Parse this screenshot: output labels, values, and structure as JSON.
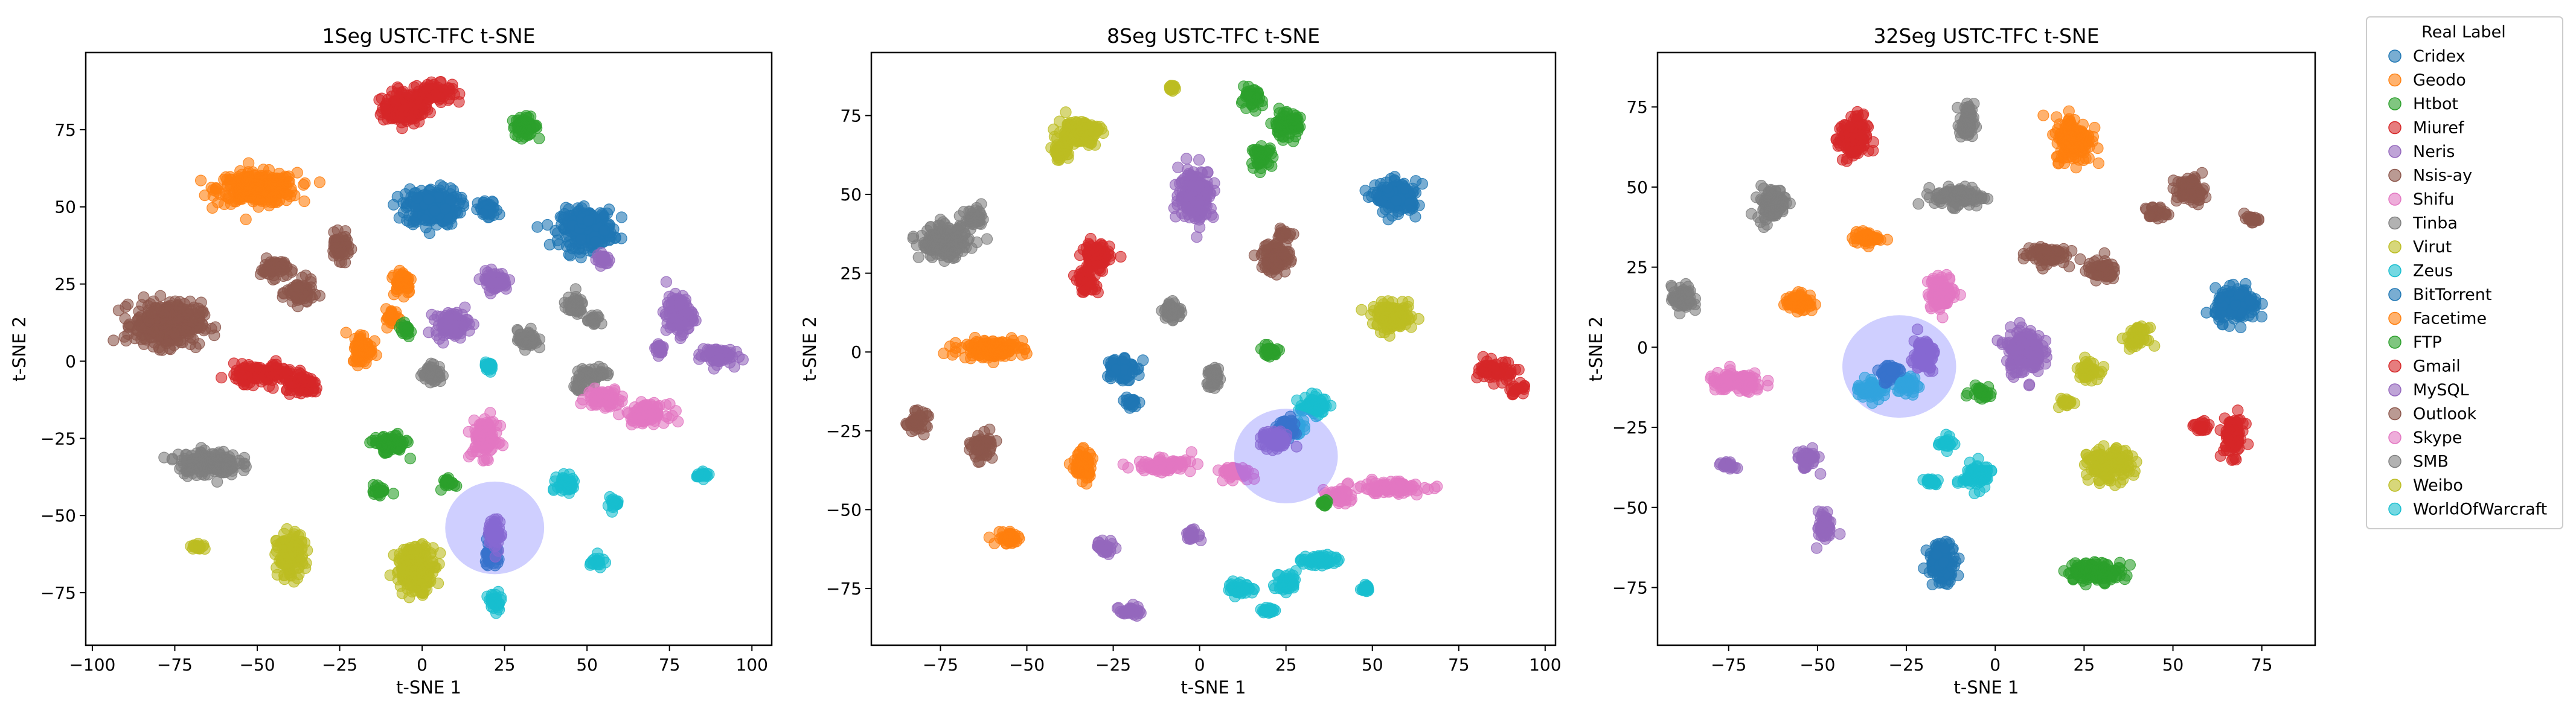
{
  "legend": {
    "title": "Real Label",
    "entries": [
      "Cridex",
      "Geodo",
      "Htbot",
      "Miuref",
      "Neris",
      "Nsis-ay",
      "Shifu",
      "Tinba",
      "Virut",
      "Zeus",
      "BitTorrent",
      "Facetime",
      "FTP",
      "Gmail",
      "MySQL",
      "Outlook",
      "Skype",
      "SMB",
      "Weibo",
      "WorldOfWarcraft"
    ],
    "colors": [
      "#1f77b4",
      "#ff7f0e",
      "#2ca02c",
      "#d62728",
      "#9467bd",
      "#8c564b",
      "#e377c2",
      "#7f7f7f",
      "#bcbd22",
      "#17becf",
      "#1f77b4",
      "#ff7f0e",
      "#2ca02c",
      "#d62728",
      "#9467bd",
      "#8c564b",
      "#e377c2",
      "#7f7f7f",
      "#bcbd22",
      "#17becf"
    ],
    "placement": "outside-right"
  },
  "chart_data": [
    {
      "type": "scatter",
      "title": "1Seg USTC-TFC t-SNE",
      "xlabel": "t-SNE 1",
      "ylabel": "t-SNE 2",
      "xlim": [
        -102,
        106
      ],
      "ylim": [
        -92,
        100
      ],
      "xticks": [
        -100,
        -75,
        -50,
        -25,
        0,
        25,
        50,
        75,
        100
      ],
      "yticks": [
        -75,
        -50,
        -25,
        0,
        25,
        50,
        75
      ],
      "highlight": {
        "x": 22,
        "y": -54,
        "rx": 15,
        "ry": 15
      },
      "clusters": [
        {
          "c": 3,
          "x": -5,
          "y": 82,
          "sx": 7,
          "sy": 5
        },
        {
          "c": 3,
          "x": 3,
          "y": 87,
          "sx": 6,
          "sy": 3
        },
        {
          "c": 12,
          "x": 31,
          "y": 76,
          "sx": 4,
          "sy": 3
        },
        {
          "c": 1,
          "x": -50,
          "y": 56,
          "sx": 12,
          "sy": 5
        },
        {
          "c": 0,
          "x": 3,
          "y": 50,
          "sx": 8,
          "sy": 6
        },
        {
          "c": 0,
          "x": 20,
          "y": 49,
          "sx": 3,
          "sy": 3
        },
        {
          "c": 0,
          "x": 50,
          "y": 43,
          "sx": 8,
          "sy": 6
        },
        {
          "c": 5,
          "x": -45,
          "y": 30,
          "sx": 4,
          "sy": 3
        },
        {
          "c": 5,
          "x": -25,
          "y": 37,
          "sx": 3,
          "sy": 4
        },
        {
          "c": 5,
          "x": -37,
          "y": 22,
          "sx": 4,
          "sy": 4
        },
        {
          "c": 5,
          "x": -77,
          "y": 12,
          "sx": 10,
          "sy": 7
        },
        {
          "c": 1,
          "x": -6,
          "y": 26,
          "sx": 3,
          "sy": 4
        },
        {
          "c": 1,
          "x": -9,
          "y": 14,
          "sx": 2,
          "sy": 3
        },
        {
          "c": 1,
          "x": -18,
          "y": 4,
          "sx": 3,
          "sy": 5
        },
        {
          "c": 14,
          "x": 22,
          "y": 26,
          "sx": 4,
          "sy": 3
        },
        {
          "c": 14,
          "x": 9,
          "y": 12,
          "sx": 5,
          "sy": 4
        },
        {
          "c": 14,
          "x": 78,
          "y": 15,
          "sx": 4,
          "sy": 6
        },
        {
          "c": 14,
          "x": 89,
          "y": 2,
          "sx": 5,
          "sy": 3
        },
        {
          "c": 14,
          "x": 72,
          "y": 4,
          "sx": 2,
          "sy": 2
        },
        {
          "c": 14,
          "x": 55,
          "y": 33,
          "sx": 2,
          "sy": 2
        },
        {
          "c": 7,
          "x": 46,
          "y": 18,
          "sx": 3,
          "sy": 3
        },
        {
          "c": 7,
          "x": 52,
          "y": 13,
          "sx": 2,
          "sy": 2
        },
        {
          "c": 7,
          "x": 32,
          "y": 7,
          "sx": 3,
          "sy": 3
        },
        {
          "c": 7,
          "x": 3,
          "y": -4,
          "sx": 3,
          "sy": 3
        },
        {
          "c": 7,
          "x": 52,
          "y": -4,
          "sx": 5,
          "sy": 2
        },
        {
          "c": 7,
          "x": 48,
          "y": -8,
          "sx": 2,
          "sy": 2
        },
        {
          "c": 7,
          "x": -65,
          "y": -33,
          "sx": 9,
          "sy": 4
        },
        {
          "c": 3,
          "x": -48,
          "y": -4,
          "sx": 9,
          "sy": 3
        },
        {
          "c": 3,
          "x": -36,
          "y": -8,
          "sx": 5,
          "sy": 3
        },
        {
          "c": 2,
          "x": -5,
          "y": 10,
          "sx": 2,
          "sy": 2
        },
        {
          "c": 9,
          "x": 20,
          "y": -2,
          "sx": 2,
          "sy": 2
        },
        {
          "c": 16,
          "x": 55,
          "y": -12,
          "sx": 5,
          "sy": 3
        },
        {
          "c": 16,
          "x": 68,
          "y": -17,
          "sx": 6,
          "sy": 3
        },
        {
          "c": 16,
          "x": 19,
          "y": -25,
          "sx": 4,
          "sy": 6
        },
        {
          "c": 2,
          "x": -10,
          "y": -27,
          "sx": 5,
          "sy": 3
        },
        {
          "c": 2,
          "x": -13,
          "y": -42,
          "sx": 2,
          "sy": 2
        },
        {
          "c": 2,
          "x": 8,
          "y": -39,
          "sx": 2,
          "sy": 2
        },
        {
          "c": 9,
          "x": 44,
          "y": -40,
          "sx": 3,
          "sy": 3
        },
        {
          "c": 9,
          "x": 58,
          "y": -46,
          "sx": 2,
          "sy": 2
        },
        {
          "c": 9,
          "x": 85,
          "y": -37,
          "sx": 2,
          "sy": 1
        },
        {
          "c": 9,
          "x": 53,
          "y": -65,
          "sx": 2,
          "sy": 2
        },
        {
          "c": 9,
          "x": 22,
          "y": -78,
          "sx": 2,
          "sy": 3
        },
        {
          "c": 8,
          "x": -40,
          "y": -63,
          "sx": 4,
          "sy": 7
        },
        {
          "c": 8,
          "x": -2,
          "y": -67,
          "sx": 6,
          "sy": 7
        },
        {
          "c": 8,
          "x": -68,
          "y": -60,
          "sx": 2,
          "sy": 1
        },
        {
          "c": 0,
          "x": 21,
          "y": -62,
          "sx": 2,
          "sy": 5
        },
        {
          "c": 4,
          "x": 22,
          "y": -56,
          "sx": 2,
          "sy": 5
        }
      ]
    },
    {
      "type": "scatter",
      "title": "8Seg USTC-TFC t-SNE",
      "xlabel": "t-SNE 1",
      "ylabel": "t-SNE 2",
      "xlim": [
        -95,
        103
      ],
      "ylim": [
        -93,
        95
      ],
      "xticks": [
        -75,
        -50,
        -25,
        0,
        25,
        50,
        75,
        100
      ],
      "yticks": [
        -75,
        -50,
        -25,
        0,
        25,
        50,
        75
      ],
      "highlight": {
        "x": 25,
        "y": -33,
        "rx": 15,
        "ry": 15
      },
      "clusters": [
        {
          "c": 8,
          "x": -35,
          "y": 70,
          "sx": 6,
          "sy": 4
        },
        {
          "c": 8,
          "x": -40,
          "y": 64,
          "sx": 3,
          "sy": 3
        },
        {
          "c": 8,
          "x": -8,
          "y": 84,
          "sx": 1,
          "sy": 1
        },
        {
          "c": 12,
          "x": 15,
          "y": 80,
          "sx": 3,
          "sy": 3
        },
        {
          "c": 12,
          "x": 25,
          "y": 72,
          "sx": 4,
          "sy": 4
        },
        {
          "c": 12,
          "x": 18,
          "y": 62,
          "sx": 3,
          "sy": 3
        },
        {
          "c": 14,
          "x": -1,
          "y": 50,
          "sx": 5,
          "sy": 8
        },
        {
          "c": 0,
          "x": 57,
          "y": 49,
          "sx": 6,
          "sy": 5
        },
        {
          "c": 7,
          "x": -74,
          "y": 35,
          "sx": 7,
          "sy": 5
        },
        {
          "c": 7,
          "x": -65,
          "y": 42,
          "sx": 3,
          "sy": 3
        },
        {
          "c": 3,
          "x": -30,
          "y": 30,
          "sx": 4,
          "sy": 5
        },
        {
          "c": 3,
          "x": -33,
          "y": 22,
          "sx": 3,
          "sy": 3
        },
        {
          "c": 5,
          "x": 22,
          "y": 30,
          "sx": 4,
          "sy": 5
        },
        {
          "c": 5,
          "x": 25,
          "y": 38,
          "sx": 2,
          "sy": 2
        },
        {
          "c": 7,
          "x": -8,
          "y": 13,
          "sx": 3,
          "sy": 3
        },
        {
          "c": 8,
          "x": 56,
          "y": 11,
          "sx": 6,
          "sy": 4
        },
        {
          "c": 1,
          "x": -60,
          "y": 1,
          "sx": 9,
          "sy": 3
        },
        {
          "c": 0,
          "x": -23,
          "y": -5,
          "sx": 4,
          "sy": 4
        },
        {
          "c": 0,
          "x": -20,
          "y": -16,
          "sx": 2,
          "sy": 2
        },
        {
          "c": 2,
          "x": 20,
          "y": 0,
          "sx": 3,
          "sy": 2
        },
        {
          "c": 7,
          "x": 4,
          "y": -8,
          "sx": 2,
          "sy": 4
        },
        {
          "c": 3,
          "x": 86,
          "y": -6,
          "sx": 5,
          "sy": 3
        },
        {
          "c": 3,
          "x": 92,
          "y": -12,
          "sx": 2,
          "sy": 2
        },
        {
          "c": 5,
          "x": -82,
          "y": -22,
          "sx": 3,
          "sy": 3
        },
        {
          "c": 5,
          "x": -63,
          "y": -30,
          "sx": 3,
          "sy": 4
        },
        {
          "c": 1,
          "x": -34,
          "y": -36,
          "sx": 3,
          "sy": 5
        },
        {
          "c": 16,
          "x": -10,
          "y": -36,
          "sx": 8,
          "sy": 2
        },
        {
          "c": 16,
          "x": 10,
          "y": -38,
          "sx": 5,
          "sy": 2
        },
        {
          "c": 16,
          "x": 55,
          "y": -43,
          "sx": 10,
          "sy": 2
        },
        {
          "c": 16,
          "x": 40,
          "y": -46,
          "sx": 4,
          "sy": 2
        },
        {
          "c": 9,
          "x": 33,
          "y": -17,
          "sx": 4,
          "sy": 3
        },
        {
          "c": 9,
          "x": 27,
          "y": -24,
          "sx": 3,
          "sy": 2
        },
        {
          "c": 9,
          "x": 35,
          "y": -66,
          "sx": 5,
          "sy": 2
        },
        {
          "c": 9,
          "x": 12,
          "y": -75,
          "sx": 4,
          "sy": 2
        },
        {
          "c": 9,
          "x": 25,
          "y": -73,
          "sx": 3,
          "sy": 3
        },
        {
          "c": 9,
          "x": 20,
          "y": -82,
          "sx": 2,
          "sy": 1
        },
        {
          "c": 9,
          "x": 48,
          "y": -75,
          "sx": 1,
          "sy": 1
        },
        {
          "c": 14,
          "x": -20,
          "y": -82,
          "sx": 3,
          "sy": 2
        },
        {
          "c": 14,
          "x": -27,
          "y": -62,
          "sx": 3,
          "sy": 2
        },
        {
          "c": 14,
          "x": -2,
          "y": -58,
          "sx": 2,
          "sy": 2
        },
        {
          "c": 1,
          "x": -55,
          "y": -59,
          "sx": 4,
          "sy": 2
        },
        {
          "c": 2,
          "x": 36,
          "y": -48,
          "sx": 1,
          "sy": 1
        },
        {
          "c": 0,
          "x": 25,
          "y": -24,
          "sx": 3,
          "sy": 3
        },
        {
          "c": 4,
          "x": 22,
          "y": -28,
          "sx": 4,
          "sy": 3
        }
      ]
    },
    {
      "type": "scatter",
      "title": "32Seg USTC-TFC t-SNE",
      "xlabel": "t-SNE 1",
      "ylabel": "t-SNE 2",
      "xlim": [
        -95,
        90
      ],
      "ylim": [
        -93,
        92
      ],
      "xticks": [
        -75,
        -50,
        -25,
        0,
        25,
        50,
        75
      ],
      "yticks": [
        -75,
        -50,
        -25,
        0,
        25,
        50,
        75
      ],
      "highlight": {
        "x": -27,
        "y": -6,
        "rx": 16,
        "ry": 16
      },
      "clusters": [
        {
          "c": 3,
          "x": -40,
          "y": 65,
          "sx": 4,
          "sy": 7
        },
        {
          "c": 7,
          "x": -8,
          "y": 70,
          "sx": 2,
          "sy": 6
        },
        {
          "c": 7,
          "x": -10,
          "y": 47,
          "sx": 7,
          "sy": 3
        },
        {
          "c": 1,
          "x": 22,
          "y": 65,
          "sx": 5,
          "sy": 7
        },
        {
          "c": 7,
          "x": -63,
          "y": 45,
          "sx": 4,
          "sy": 5
        },
        {
          "c": 5,
          "x": 55,
          "y": 49,
          "sx": 4,
          "sy": 4
        },
        {
          "c": 5,
          "x": 45,
          "y": 42,
          "sx": 3,
          "sy": 2
        },
        {
          "c": 5,
          "x": 72,
          "y": 40,
          "sx": 2,
          "sy": 1
        },
        {
          "c": 1,
          "x": -36,
          "y": 34,
          "sx": 4,
          "sy": 2
        },
        {
          "c": 5,
          "x": 14,
          "y": 29,
          "sx": 6,
          "sy": 3
        },
        {
          "c": 5,
          "x": 30,
          "y": 24,
          "sx": 4,
          "sy": 3
        },
        {
          "c": 7,
          "x": -88,
          "y": 15,
          "sx": 3,
          "sy": 4
        },
        {
          "c": 1,
          "x": -55,
          "y": 14,
          "sx": 4,
          "sy": 3
        },
        {
          "c": 16,
          "x": -15,
          "y": 17,
          "sx": 4,
          "sy": 5
        },
        {
          "c": 14,
          "x": 8,
          "y": -1,
          "sx": 5,
          "sy": 7
        },
        {
          "c": 0,
          "x": 68,
          "y": 13,
          "sx": 6,
          "sy": 5
        },
        {
          "c": 16,
          "x": -73,
          "y": -11,
          "sx": 8,
          "sy": 3
        },
        {
          "c": 2,
          "x": -4,
          "y": -14,
          "sx": 3,
          "sy": 2
        },
        {
          "c": 8,
          "x": 26,
          "y": -7,
          "sx": 3,
          "sy": 3
        },
        {
          "c": 8,
          "x": 40,
          "y": 3,
          "sx": 3,
          "sy": 3
        },
        {
          "c": 8,
          "x": 20,
          "y": -17,
          "sx": 2,
          "sy": 2
        },
        {
          "c": 3,
          "x": 67,
          "y": -28,
          "sx": 3,
          "sy": 6
        },
        {
          "c": 3,
          "x": 58,
          "y": -25,
          "sx": 2,
          "sy": 2
        },
        {
          "c": 14,
          "x": -53,
          "y": -35,
          "sx": 3,
          "sy": 3
        },
        {
          "c": 14,
          "x": -48,
          "y": -56,
          "sx": 2,
          "sy": 5
        },
        {
          "c": 14,
          "x": -75,
          "y": -37,
          "sx": 2,
          "sy": 1
        },
        {
          "c": 9,
          "x": -5,
          "y": -40,
          "sx": 4,
          "sy": 4
        },
        {
          "c": 9,
          "x": -14,
          "y": -30,
          "sx": 2,
          "sy": 2
        },
        {
          "c": 9,
          "x": -18,
          "y": -42,
          "sx": 2,
          "sy": 1
        },
        {
          "c": 8,
          "x": 32,
          "y": -37,
          "sx": 6,
          "sy": 5
        },
        {
          "c": 0,
          "x": -15,
          "y": -67,
          "sx": 4,
          "sy": 6
        },
        {
          "c": 12,
          "x": 28,
          "y": -70,
          "sx": 8,
          "sy": 3
        },
        {
          "c": 9,
          "x": -35,
          "y": -13,
          "sx": 4,
          "sy": 3
        },
        {
          "c": 9,
          "x": -25,
          "y": -12,
          "sx": 3,
          "sy": 3
        },
        {
          "c": 14,
          "x": -20,
          "y": -2,
          "sx": 3,
          "sy": 5
        },
        {
          "c": 0,
          "x": -30,
          "y": -8,
          "sx": 3,
          "sy": 3
        }
      ]
    }
  ]
}
